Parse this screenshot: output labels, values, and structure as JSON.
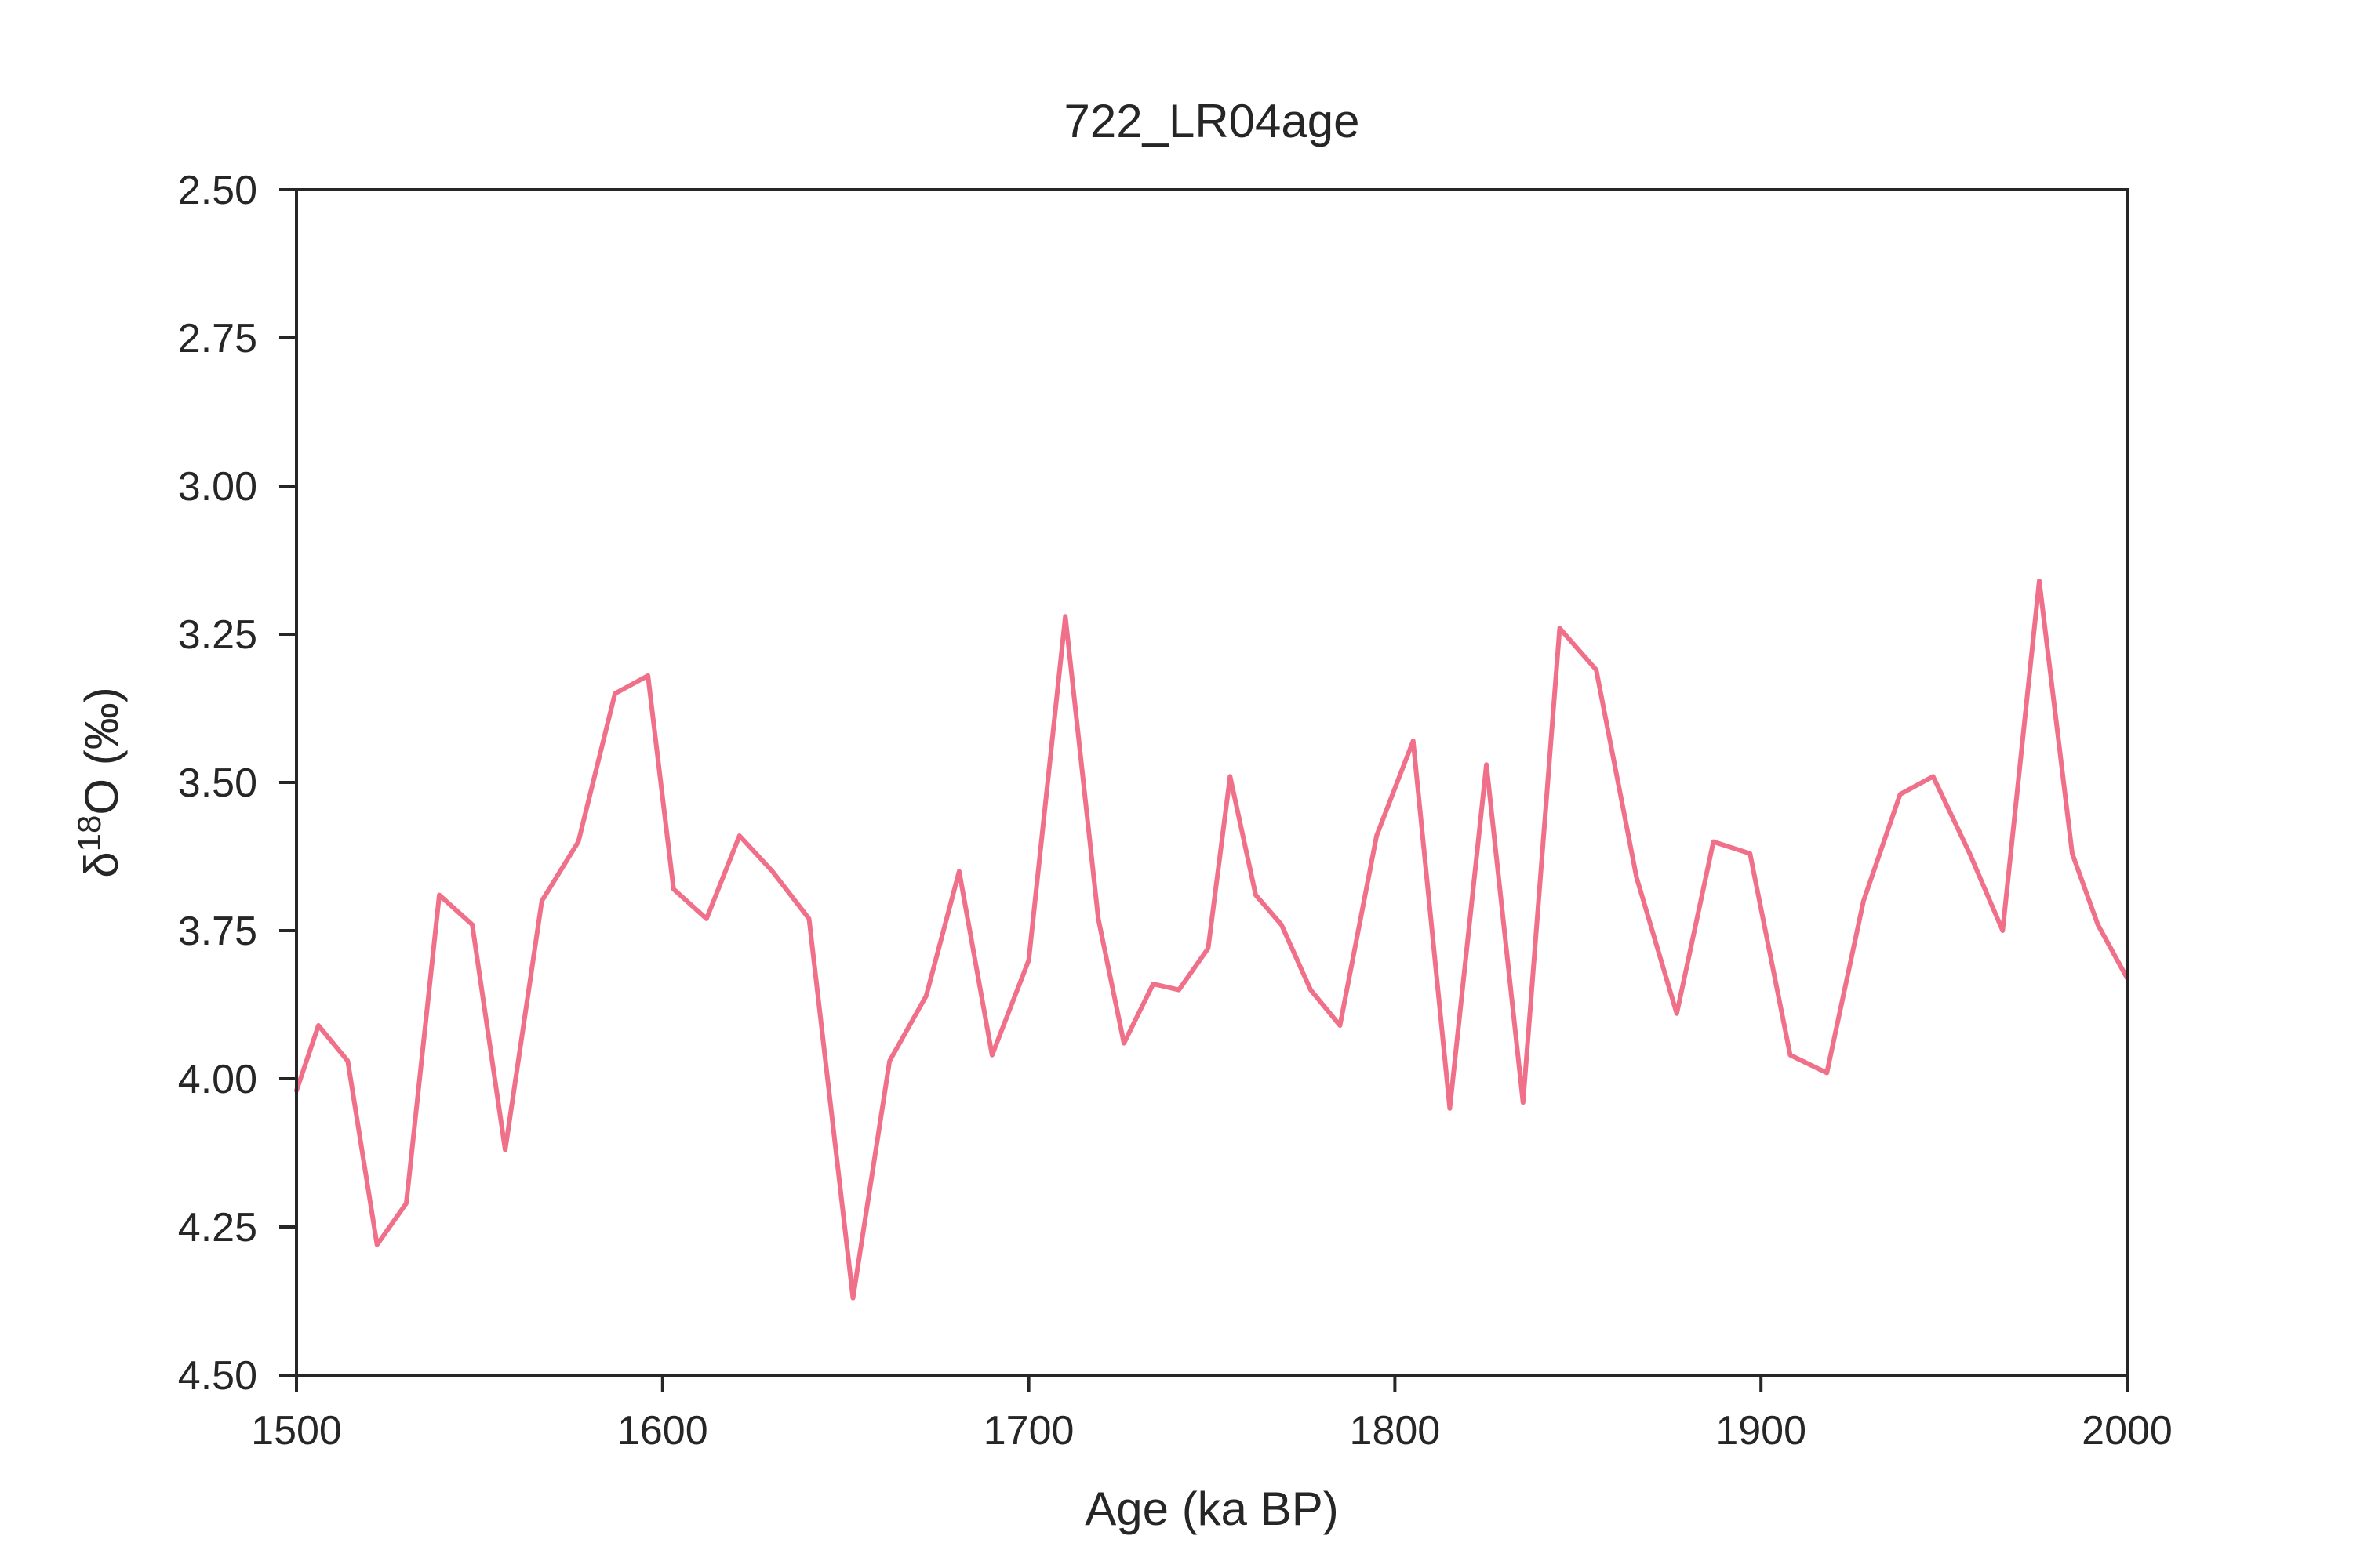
{
  "chart_data": {
    "type": "line",
    "title": "722_LR04age",
    "xlabel": "Age (ka BP)",
    "ylabel_base": "δ",
    "ylabel_superscript": "18",
    "ylabel_rest": "O (‰)",
    "xlim": [
      1500,
      2000
    ],
    "ylim": [
      4.5,
      2.5
    ],
    "y_inverted": true,
    "xticks": [
      1500,
      1600,
      1700,
      1800,
      1900,
      2000
    ],
    "xtick_labels": [
      "1500",
      "1600",
      "1700",
      "1800",
      "1900",
      "2000"
    ],
    "yticks": [
      2.5,
      2.75,
      3.0,
      3.25,
      3.5,
      3.75,
      4.0,
      4.25,
      4.5
    ],
    "ytick_labels": [
      "2.50",
      "2.75",
      "3.00",
      "3.25",
      "3.50",
      "3.75",
      "4.00",
      "4.25",
      "4.50"
    ],
    "grid": false,
    "series": [
      {
        "color": "#f0708a",
        "x": [
          1500,
          1506,
          1514,
          1522,
          1530,
          1539,
          1548,
          1557,
          1567,
          1577,
          1587,
          1596,
          1603,
          1612,
          1621,
          1630,
          1640,
          1652,
          1662,
          1672,
          1681,
          1690,
          1700,
          1710,
          1719,
          1726,
          1734,
          1741,
          1749,
          1755,
          1762,
          1769,
          1777,
          1785,
          1795,
          1805,
          1815,
          1825,
          1835,
          1845,
          1855,
          1866,
          1877,
          1887,
          1897,
          1908,
          1918,
          1928,
          1938,
          1947,
          1957,
          1966,
          1976,
          1985,
          1992,
          2000
        ],
        "y": [
          4.02,
          3.91,
          3.97,
          4.28,
          4.21,
          3.69,
          3.74,
          4.12,
          3.7,
          3.6,
          3.35,
          3.32,
          3.68,
          3.73,
          3.59,
          3.65,
          3.73,
          4.37,
          3.97,
          3.86,
          3.65,
          3.96,
          3.8,
          3.22,
          3.73,
          3.94,
          3.84,
          3.85,
          3.78,
          3.49,
          3.69,
          3.74,
          3.85,
          3.91,
          3.59,
          3.43,
          4.05,
          3.47,
          4.04,
          3.24,
          3.31,
          3.66,
          3.89,
          3.6,
          3.62,
          3.96,
          3.99,
          3.7,
          3.52,
          3.49,
          3.62,
          3.75,
          3.16,
          3.62,
          3.74,
          3.83
        ]
      }
    ]
  }
}
